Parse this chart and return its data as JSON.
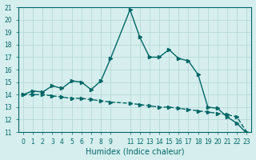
{
  "xlabel": "Humidex (Indice chaleur)",
  "x": [
    0,
    1,
    2,
    3,
    4,
    5,
    6,
    7,
    8,
    9,
    11,
    12,
    13,
    14,
    15,
    16,
    17,
    18,
    19,
    20,
    21,
    22,
    23
  ],
  "line1_y": [
    14.0,
    14.3,
    14.2,
    14.7,
    14.5,
    15.1,
    15.0,
    14.4,
    15.1,
    16.9,
    20.8,
    18.6,
    17.0,
    17.0,
    17.6,
    16.9,
    16.7,
    15.6,
    13.0,
    12.9,
    12.2,
    11.7,
    10.9
  ],
  "line2_y": [
    14.0,
    14.0,
    14.0,
    13.9,
    13.8,
    13.7,
    13.7,
    13.6,
    13.5,
    13.4,
    13.3,
    13.2,
    13.1,
    13.0,
    13.0,
    12.9,
    12.8,
    12.7,
    12.6,
    12.5,
    12.4,
    12.2,
    11.0
  ],
  "line_color": "#006666",
  "bg_color": "#d6eeee",
  "grid_color": "#b0d4d4",
  "ylim": [
    11,
    21
  ],
  "yticks": [
    11,
    12,
    13,
    14,
    15,
    16,
    17,
    18,
    19,
    20,
    21
  ],
  "xticks": [
    0,
    1,
    2,
    3,
    4,
    5,
    6,
    7,
    8,
    9,
    11,
    12,
    13,
    14,
    15,
    16,
    17,
    18,
    19,
    20,
    21,
    22,
    23
  ]
}
